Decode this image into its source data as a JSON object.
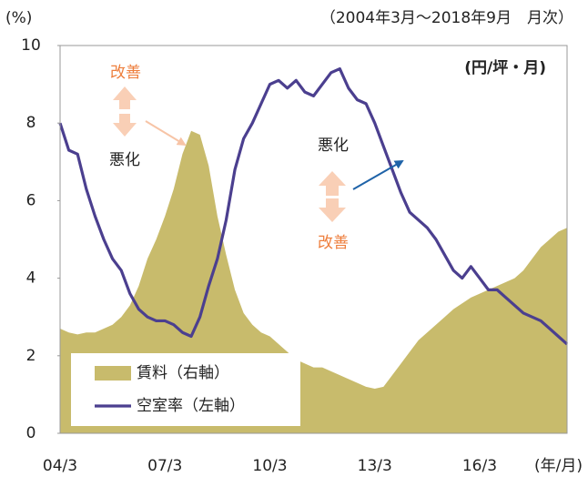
{
  "chart_data": {
    "type": "line",
    "subtitle": "（2004年3月～2018年9月　月次）",
    "y_label": "(%)",
    "y2_label": "(円/坪・月)",
    "x_label": "(年/月)",
    "annotations": [
      "改善",
      "悪化",
      "悪化",
      "改善"
    ],
    "categories": [
      "04/3",
      null,
      null,
      null,
      null,
      null,
      null,
      null,
      null,
      null,
      null,
      null,
      "07/3",
      null,
      null,
      null,
      null,
      null,
      null,
      null,
      null,
      null,
      null,
      null,
      "10/3",
      null,
      null,
      null,
      null,
      null,
      null,
      null,
      null,
      null,
      null,
      null,
      "13/3",
      null,
      null,
      null,
      null,
      null,
      null,
      null,
      null,
      null,
      null,
      null,
      "16/3",
      null,
      null,
      null,
      null,
      null,
      null,
      null,
      null,
      null,
      null
    ],
    "series": [
      {
        "name": "賃料（右軸）",
        "color": "#c8bb6c",
        "kind": "area",
        "axis": "y2",
        "values": [
          2.7,
          2.6,
          2.55,
          2.6,
          2.6,
          2.7,
          2.8,
          3.0,
          3.3,
          3.8,
          4.5,
          5.0,
          5.6,
          6.3,
          7.2,
          7.8,
          7.7,
          6.9,
          5.6,
          4.6,
          3.7,
          3.1,
          2.8,
          2.6,
          2.5,
          2.3,
          2.1,
          1.9,
          1.8,
          1.7,
          1.7,
          1.6,
          1.5,
          1.4,
          1.3,
          1.2,
          1.15,
          1.2,
          1.5,
          1.8,
          2.1,
          2.4,
          2.6,
          2.8,
          3.0,
          3.2,
          3.35,
          3.5,
          3.6,
          3.7,
          3.8,
          3.9,
          4.0,
          4.2,
          4.5,
          4.8,
          5.0,
          5.2,
          5.3
        ]
      },
      {
        "name": "空室率（左軸）",
        "color": "#4b3f8f",
        "kind": "line",
        "values": [
          8.0,
          7.3,
          7.2,
          6.3,
          5.6,
          5.0,
          4.5,
          4.2,
          3.6,
          3.2,
          3.0,
          2.9,
          2.9,
          2.8,
          2.6,
          2.5,
          3.0,
          3.8,
          4.5,
          5.5,
          6.8,
          7.6,
          8.0,
          8.5,
          9.0,
          9.1,
          8.9,
          9.1,
          8.8,
          8.7,
          9.0,
          9.3,
          9.4,
          8.9,
          8.6,
          8.5,
          8.0,
          7.4,
          6.8,
          6.2,
          5.7,
          5.5,
          5.3,
          5.0,
          4.6,
          4.2,
          4.0,
          4.3,
          4.0,
          3.7,
          3.7,
          3.5,
          3.3,
          3.1,
          3.0,
          2.9,
          2.7,
          2.5,
          2.3
        ]
      }
    ],
    "ylim": [
      0,
      10
    ],
    "yticks": [
      0,
      2,
      4,
      6,
      8,
      10
    ],
    "y2lim": [
      0,
      10
    ]
  }
}
